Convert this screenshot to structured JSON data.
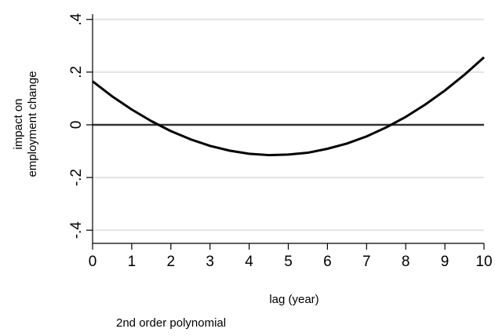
{
  "chart_data": {
    "type": "line",
    "xlabel": "lag (year)",
    "ylabel": [
      "impact on",
      "employment change"
    ],
    "note": "2nd order polynomial",
    "x": [
      0,
      0.5,
      1,
      1.5,
      2,
      2.5,
      3,
      3.5,
      4,
      4.5,
      5,
      5.5,
      6,
      6.5,
      7,
      7.5,
      8,
      8.5,
      9,
      9.5,
      10
    ],
    "series": [
      {
        "color": "#000000",
        "values": [
          0.165,
          0.108,
          0.058,
          0.014,
          -0.024,
          -0.055,
          -0.08,
          -0.098,
          -0.11,
          -0.115,
          -0.113,
          -0.106,
          -0.091,
          -0.071,
          -0.044,
          -0.01,
          0.03,
          0.077,
          0.13,
          0.19,
          0.256
        ]
      }
    ],
    "xlim": [
      0,
      10
    ],
    "xticks": [
      0,
      1,
      2,
      3,
      4,
      5,
      6,
      7,
      8,
      9,
      10
    ],
    "ylim": [
      -0.45,
      0.42
    ],
    "yticks": [
      {
        "value": 0.4,
        "label": ".4"
      },
      {
        "value": 0.2,
        "label": ".2"
      },
      0,
      {
        "value": -0.2,
        "label": "-.2"
      },
      {
        "value": -0.4,
        "label": "-.4"
      }
    ],
    "grid": true,
    "hline": 0
  }
}
